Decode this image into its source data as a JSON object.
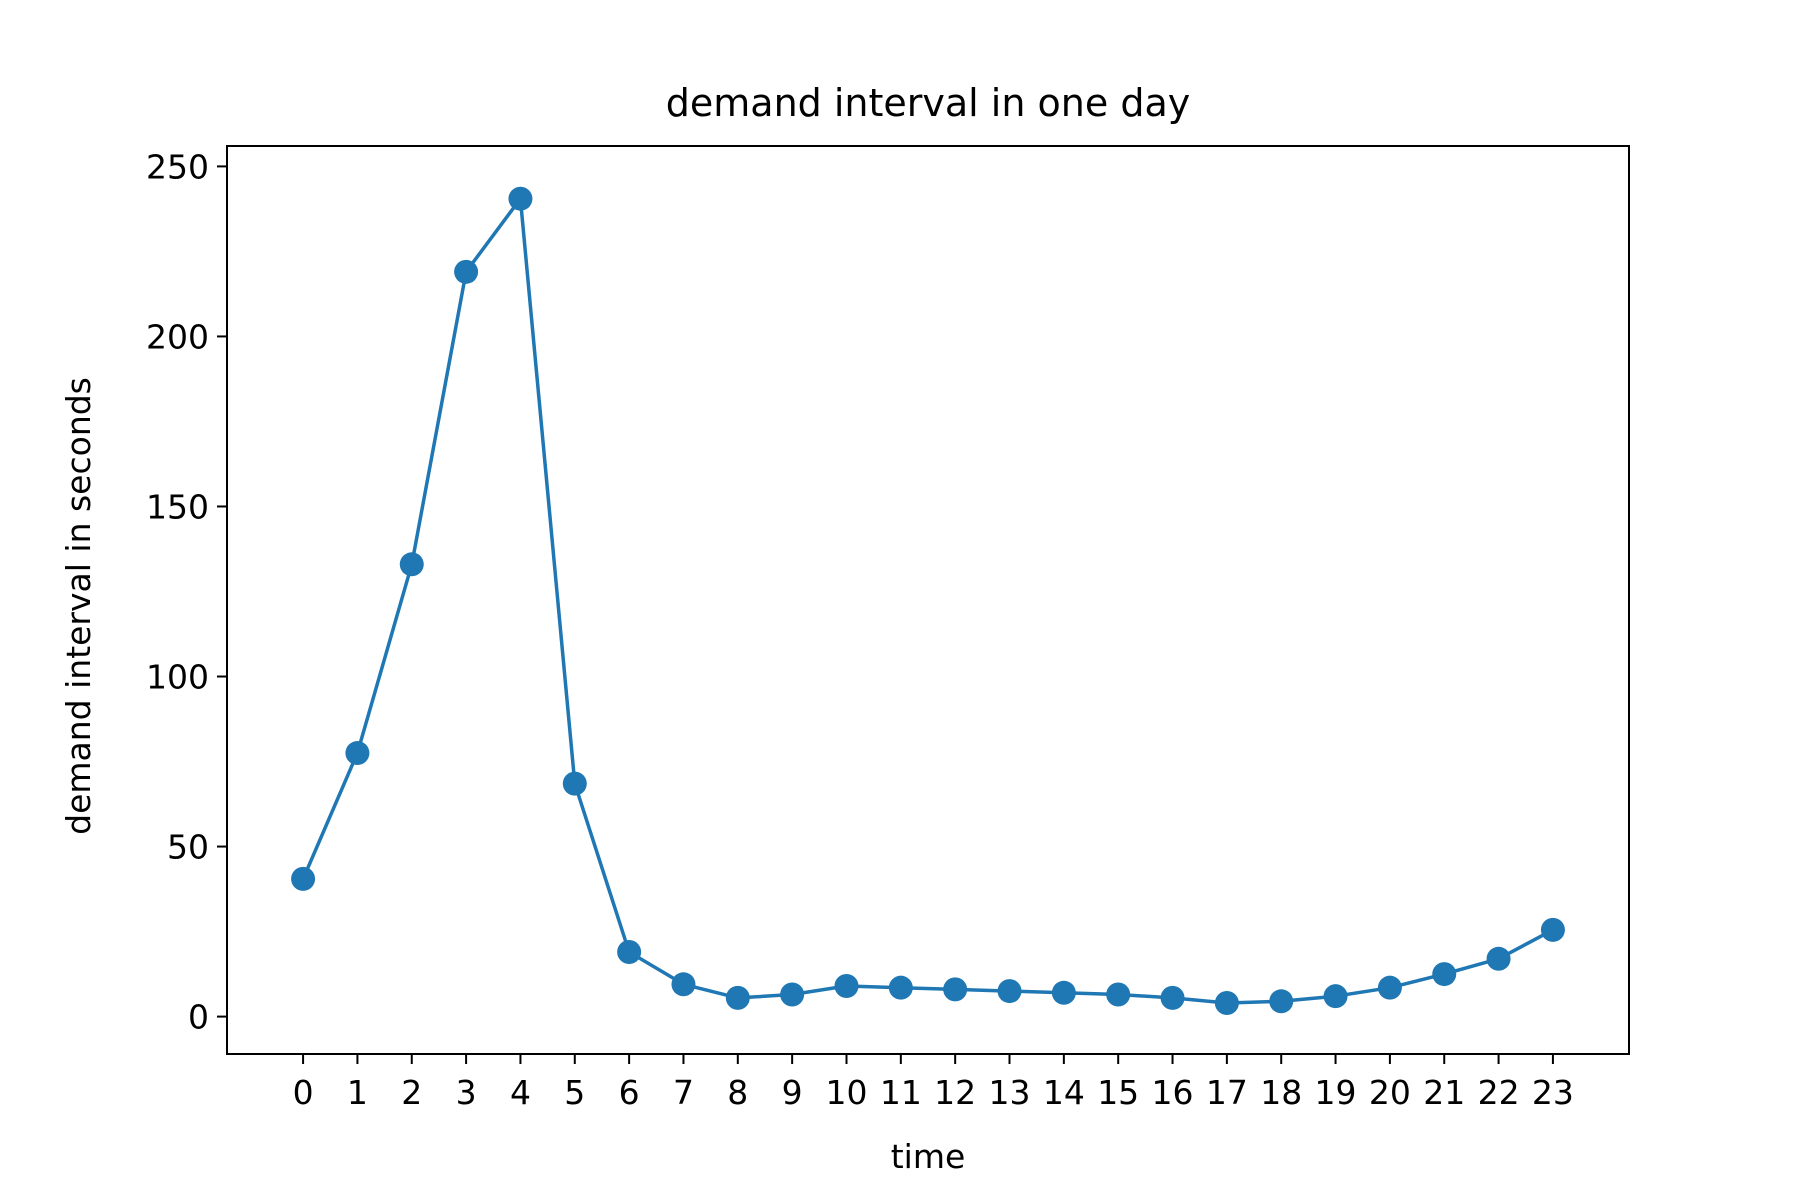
{
  "chart_data": {
    "type": "line",
    "title": "demand interval in one day",
    "xlabel": "time",
    "ylabel": "demand interval in seconds",
    "x": [
      0,
      1,
      2,
      3,
      4,
      5,
      6,
      7,
      8,
      9,
      10,
      11,
      12,
      13,
      14,
      15,
      16,
      17,
      18,
      19,
      20,
      21,
      22,
      23
    ],
    "x_tick_labels": [
      "0",
      "1",
      "2",
      "3",
      "4",
      "5",
      "6",
      "7",
      "8",
      "9",
      "10",
      "11",
      "12",
      "13",
      "14",
      "15",
      "16",
      "17",
      "18",
      "19",
      "20",
      "21",
      "22",
      "23"
    ],
    "series": [
      {
        "values": [
          40.5,
          77.5,
          133,
          219,
          240.5,
          68.5,
          19,
          9.5,
          5.5,
          6.5,
          9,
          8.5,
          8,
          7.5,
          7,
          6.5,
          5.5,
          4,
          4.5,
          6,
          8.5,
          12.5,
          17,
          25.5
        ]
      }
    ],
    "y_ticks": [
      0,
      50,
      100,
      150,
      200,
      250
    ],
    "ylim": [
      -11,
      256
    ],
    "xlim": [
      -1.4,
      24.4
    ],
    "grid": false,
    "marker": "circle",
    "colors": {
      "line": "#1f77b4",
      "marker": "#1f77b4",
      "axes": "#000000"
    }
  }
}
